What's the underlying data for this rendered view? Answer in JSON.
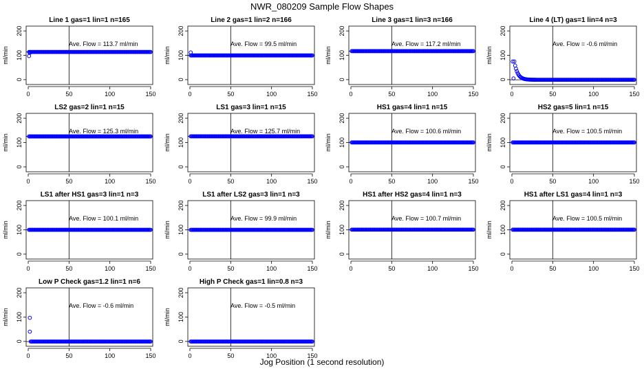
{
  "figure": {
    "title": "NWR_080209  Sample Flow Shapes",
    "xlabel": "Jog Position (1 second resolution)"
  },
  "chart_data": [
    {
      "type": "scatter",
      "title": "Line 1 gas=1 lin=1 n=165",
      "ylabel": "ml/min",
      "annotation": "Ave. Flow = 113.7  ml/min",
      "xlim": [
        0,
        150
      ],
      "ylim": [
        -20,
        220
      ],
      "xticks": [
        0,
        50,
        100,
        150
      ],
      "yticks": [
        0,
        100,
        200
      ],
      "vline": 50,
      "hline": 113.7,
      "level": 113.7,
      "x_range": [
        1,
        150
      ],
      "first_points": [
        [
          1,
          97
        ],
        [
          2,
          110
        ]
      ]
    },
    {
      "type": "scatter",
      "title": "Line 2 gas=1 lin=2 n=166",
      "ylabel": "ml/min",
      "annotation": "Ave. Flow = 99.5  ml/min",
      "xlim": [
        0,
        150
      ],
      "ylim": [
        -20,
        220
      ],
      "xticks": [
        0,
        50,
        100,
        150
      ],
      "yticks": [
        0,
        100,
        200
      ],
      "vline": 50,
      "hline": 99.5,
      "level": 99.5,
      "x_range": [
        1,
        150
      ],
      "first_points": [
        [
          1,
          112
        ]
      ]
    },
    {
      "type": "scatter",
      "title": "Line 3 gas=1 lin=3 n=166",
      "ylabel": "ml/min",
      "annotation": "Ave. Flow = 117.2  ml/min",
      "xlim": [
        0,
        150
      ],
      "ylim": [
        -20,
        220
      ],
      "xticks": [
        0,
        50,
        100,
        150
      ],
      "yticks": [
        0,
        100,
        200
      ],
      "vline": 50,
      "hline": 117.2,
      "level": 117.2,
      "x_range": [
        1,
        150
      ],
      "first_points": []
    },
    {
      "type": "scatter",
      "title": "Line 4 (LT) gas=1 lin=4 n=3",
      "ylabel": "ml/min",
      "annotation": "Ave. Flow = -0.6  ml/min",
      "xlim": [
        0,
        150
      ],
      "ylim": [
        -20,
        220
      ],
      "xticks": [
        0,
        50,
        100,
        150
      ],
      "yticks": [
        0,
        100,
        200
      ],
      "vline": 50,
      "hline": -0.6,
      "level": -0.6,
      "x_range": [
        1,
        150
      ],
      "decay": {
        "start_x": 2,
        "amplitude": 75,
        "rate": 0.25
      },
      "first_points": [
        [
          2,
          5
        ]
      ]
    },
    {
      "type": "scatter",
      "title": "LS2 gas=2 lin=1 n=15",
      "ylabel": "ml/min",
      "annotation": "Ave. Flow = 125.3  ml/min",
      "xlim": [
        0,
        150
      ],
      "ylim": [
        -20,
        220
      ],
      "xticks": [
        0,
        50,
        100,
        150
      ],
      "yticks": [
        0,
        100,
        200
      ],
      "vline": 50,
      "hline": 125.3,
      "level": 125.3,
      "x_range": [
        1,
        150
      ],
      "first_points": []
    },
    {
      "type": "scatter",
      "title": "LS1 gas=3 lin=1 n=15",
      "ylabel": "ml/min",
      "annotation": "Ave. Flow = 125.7  ml/min",
      "xlim": [
        0,
        150
      ],
      "ylim": [
        -20,
        220
      ],
      "xticks": [
        0,
        50,
        100,
        150
      ],
      "yticks": [
        0,
        100,
        200
      ],
      "vline": 50,
      "hline": 125.7,
      "level": 125.7,
      "x_range": [
        1,
        150
      ],
      "first_points": []
    },
    {
      "type": "scatter",
      "title": "HS1 gas=4 lin=1 n=15",
      "ylabel": "ml/min",
      "annotation": "Ave. Flow = 100.6  ml/min",
      "xlim": [
        0,
        150
      ],
      "ylim": [
        -20,
        220
      ],
      "xticks": [
        0,
        50,
        100,
        150
      ],
      "yticks": [
        0,
        100,
        200
      ],
      "vline": 50,
      "hline": 100.6,
      "level": 100.6,
      "x_range": [
        1,
        150
      ],
      "first_points": []
    },
    {
      "type": "scatter",
      "title": "HS2 gas=5 lin=1 n=15",
      "ylabel": "ml/min",
      "annotation": "Ave. Flow = 100.5  ml/min",
      "xlim": [
        0,
        150
      ],
      "ylim": [
        -20,
        220
      ],
      "xticks": [
        0,
        50,
        100,
        150
      ],
      "yticks": [
        0,
        100,
        200
      ],
      "vline": 50,
      "hline": 100.5,
      "level": 100.5,
      "x_range": [
        1,
        150
      ],
      "first_points": []
    },
    {
      "type": "scatter",
      "title": "LS1 after HS1 gas=3 lin=1 n=3",
      "ylabel": "ml/min",
      "annotation": "Ave. Flow = 100.1  ml/min",
      "xlim": [
        0,
        150
      ],
      "ylim": [
        -20,
        220
      ],
      "xticks": [
        0,
        50,
        100,
        150
      ],
      "yticks": [
        0,
        100,
        200
      ],
      "vline": 50,
      "hline": 100.1,
      "level": 100.1,
      "x_range": [
        1,
        150
      ],
      "first_points": []
    },
    {
      "type": "scatter",
      "title": "LS1 after LS2 gas=3 lin=1 n=3",
      "ylabel": "ml/min",
      "annotation": "Ave. Flow = 99.9  ml/min",
      "xlim": [
        0,
        150
      ],
      "ylim": [
        -20,
        220
      ],
      "xticks": [
        0,
        50,
        100,
        150
      ],
      "yticks": [
        0,
        100,
        200
      ],
      "vline": 50,
      "hline": 99.9,
      "level": 99.9,
      "x_range": [
        1,
        150
      ],
      "first_points": []
    },
    {
      "type": "scatter",
      "title": "HS1 after HS2 gas=4 lin=1 n=3",
      "ylabel": "ml/min",
      "annotation": "Ave. Flow = 100.7  ml/min",
      "xlim": [
        0,
        150
      ],
      "ylim": [
        -20,
        220
      ],
      "xticks": [
        0,
        50,
        100,
        150
      ],
      "yticks": [
        0,
        100,
        200
      ],
      "vline": 50,
      "hline": 100.7,
      "level": 100.7,
      "x_range": [
        1,
        150
      ],
      "first_points": []
    },
    {
      "type": "scatter",
      "title": "HS1 after LS1 gas=4 lin=1 n=3",
      "ylabel": "ml/min",
      "annotation": "Ave. Flow = 100.5  ml/min",
      "xlim": [
        0,
        150
      ],
      "ylim": [
        -20,
        220
      ],
      "xticks": [
        0,
        50,
        100,
        150
      ],
      "yticks": [
        0,
        100,
        200
      ],
      "vline": 50,
      "hline": 100.5,
      "level": 100.5,
      "x_range": [
        1,
        150
      ],
      "first_points": []
    },
    {
      "type": "scatter",
      "title": "Low P Check gas=1.2 lin=1 n=6",
      "ylabel": "ml/min",
      "annotation": "Ave. Flow = -0.6  ml/min",
      "xlim": [
        0,
        150
      ],
      "ylim": [
        -20,
        220
      ],
      "xticks": [
        0,
        50,
        100,
        150
      ],
      "yticks": [
        0,
        100,
        200
      ],
      "vline": 50,
      "hline": -0.6,
      "level": -0.6,
      "x_range": [
        3,
        150
      ],
      "first_points": [
        [
          2,
          97
        ],
        [
          2,
          40
        ]
      ]
    },
    {
      "type": "scatter",
      "title": "High P Check gas=1 lin=0.8 n=3",
      "ylabel": "ml/min",
      "annotation": "Ave. Flow = -0.5  ml/min",
      "xlim": [
        0,
        150
      ],
      "ylim": [
        -20,
        220
      ],
      "xticks": [
        0,
        50,
        100,
        150
      ],
      "yticks": [
        0,
        100,
        200
      ],
      "vline": 50,
      "hline": -0.5,
      "level": -0.5,
      "x_range": [
        1,
        150
      ],
      "first_points": []
    }
  ],
  "style": {
    "point_color": "#0000ff",
    "axis_color": "#000000"
  }
}
